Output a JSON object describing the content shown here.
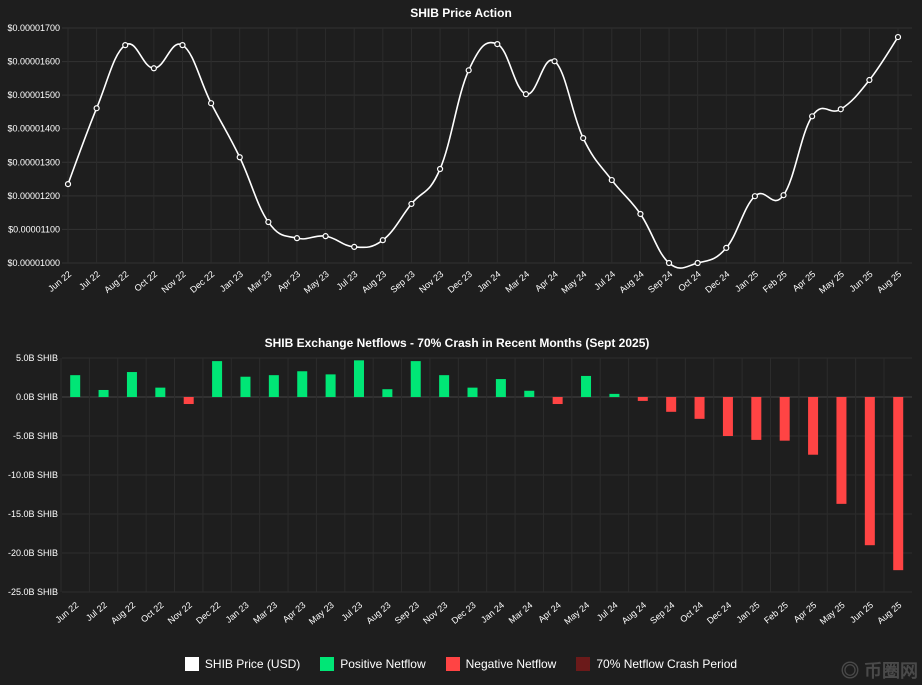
{
  "chart_data": [
    {
      "type": "line",
      "title": "SHIB Price Action",
      "categories": [
        "Jun 22",
        "Jul 22",
        "Aug 22",
        "Oct 22",
        "Nov 22",
        "Dec 22",
        "Jan 23",
        "Mar 23",
        "Apr 23",
        "May 23",
        "Jul 23",
        "Aug 23",
        "Sep 23",
        "Nov 23",
        "Dec 23",
        "Jan 24",
        "Mar 24",
        "Apr 24",
        "May 24",
        "Jul 24",
        "Aug 24",
        "Sep 24",
        "Oct 24",
        "Dec 24",
        "Jan 25",
        "Feb 25",
        "Apr 25",
        "May 25",
        "Jun 25",
        "Aug 25"
      ],
      "series": [
        {
          "name": "SHIB Price (USD)",
          "values": [
            1.235e-05,
            1.461e-05,
            1.649e-05,
            1.58e-05,
            1.649e-05,
            1.476e-05,
            1.315e-05,
            1.122e-05,
            1.074e-05,
            1.08e-05,
            1.048e-05,
            1.068e-05,
            1.176e-05,
            1.28e-05,
            1.574e-05,
            1.652e-05,
            1.503e-05,
            1.601e-05,
            1.372e-05,
            1.247e-05,
            1.146e-05,
            1e-05,
            1e-05,
            1.045e-05,
            1.199e-05,
            1.202e-05,
            1.437e-05,
            1.458e-05,
            1.545e-05,
            1.673e-05
          ]
        }
      ],
      "yticks": [
        "$0.00001000",
        "$0.00001100",
        "$0.00001200",
        "$0.00001300",
        "$0.00001400",
        "$0.00001500",
        "$0.00001600",
        "$0.00001700"
      ],
      "ylim": [
        1e-05,
        1.7e-05
      ],
      "color": "#ffffff"
    },
    {
      "type": "bar",
      "title": "SHIB Exchange Netflows - 70% Crash in Recent Months (Sept 2025)",
      "categories": [
        "Jun 22",
        "Jul 22",
        "Aug 22",
        "Oct 22",
        "Nov 22",
        "Dec 22",
        "Jan 23",
        "Mar 23",
        "Apr 23",
        "May 23",
        "Jul 23",
        "Aug 23",
        "Sep 23",
        "Nov 23",
        "Dec 23",
        "Jan 24",
        "Mar 24",
        "Apr 24",
        "May 24",
        "Jul 24",
        "Aug 24",
        "Sep 24",
        "Oct 24",
        "Dec 24",
        "Jan 25",
        "Feb 25",
        "Apr 25",
        "May 25",
        "Jun 25",
        "Aug 25"
      ],
      "values": [
        2.8,
        0.9,
        3.2,
        1.2,
        -0.9,
        4.6,
        2.6,
        2.8,
        3.3,
        2.9,
        4.7,
        1.0,
        4.6,
        2.8,
        1.2,
        2.3,
        0.8,
        -0.9,
        2.7,
        0.4,
        -0.5,
        -1.9,
        -2.8,
        -5.0,
        -5.5,
        -5.6,
        -7.4,
        -13.7,
        -19.0,
        -22.2
      ],
      "unit": "B SHIB",
      "yticks": [
        "5.0B SHIB",
        "0.0B SHIB",
        "-5.0B SHIB",
        "-10.0B SHIB",
        "-15.0B SHIB",
        "-20.0B SHIB",
        "-25.0B SHIB"
      ],
      "ylim": [
        -25,
        5
      ],
      "positive_color": "#00e676",
      "negative_color": "#ff4444"
    }
  ],
  "legend": [
    {
      "label": "SHIB Price (USD)",
      "color": "#ffffff"
    },
    {
      "label": "Positive Netflow",
      "color": "#00e676"
    },
    {
      "label": "Negative Netflow",
      "color": "#ff4444"
    },
    {
      "label": "70% Netflow Crash Period",
      "color": "#6b1a1a"
    }
  ],
  "watermark": "币圈网"
}
